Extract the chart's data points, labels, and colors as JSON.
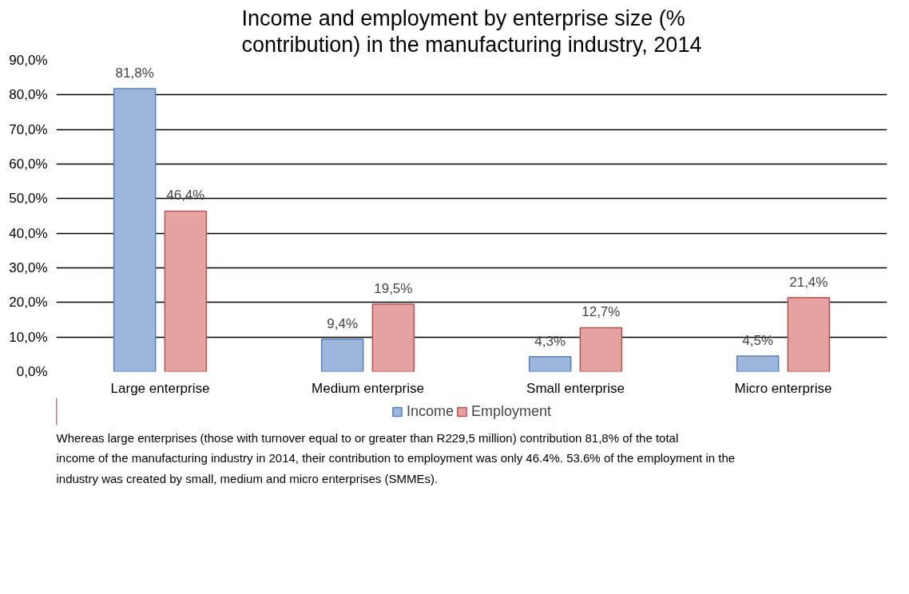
{
  "chart_data": {
    "type": "bar",
    "title": "Income and employment by enterprise size (% contribution) in the manufacturing industry, 2014",
    "categories": [
      "Large enterprise",
      "Medium enterprise",
      "Small enterprise",
      "Micro enterprise"
    ],
    "series": [
      {
        "name": "Income",
        "color": "#9fb6dc",
        "values": [
          81.8,
          9.4,
          4.3,
          4.5
        ],
        "value_labels": [
          "81,8%",
          "9,4%",
          "4,3%",
          "4,5%"
        ]
      },
      {
        "name": "Employment",
        "color": "#e4a2a1",
        "values": [
          46.4,
          19.5,
          12.7,
          21.4
        ],
        "value_labels": [
          "46,4%",
          "19,5%",
          "12,7%",
          "21,4%"
        ]
      }
    ],
    "ylim": [
      0,
      90
    ],
    "yticks": [
      {
        "value": 0,
        "label": "0,0%"
      },
      {
        "value": 10,
        "label": "10,0%"
      },
      {
        "value": 20,
        "label": "20,0%"
      },
      {
        "value": 30,
        "label": "30,0%"
      },
      {
        "value": 40,
        "label": "40,0%"
      },
      {
        "value": 50,
        "label": "50,0%"
      },
      {
        "value": 60,
        "label": "60,0%"
      },
      {
        "value": 70,
        "label": "70,0%"
      },
      {
        "value": 80,
        "label": "80,0%"
      },
      {
        "value": 90,
        "label": "90,0%"
      }
    ],
    "grid": "y",
    "legend": "bottom",
    "annotations": [
      "Whereas large enterprises (those with turnover equal to or greater than R229,5 million) contribution 81,8% of the total income of the manufacturing industry in 2014, their contribution to employment was only 46.4%. 53.6% of the employment in the industry was created by small, medium and micro enterprises (SMMEs)."
    ]
  }
}
